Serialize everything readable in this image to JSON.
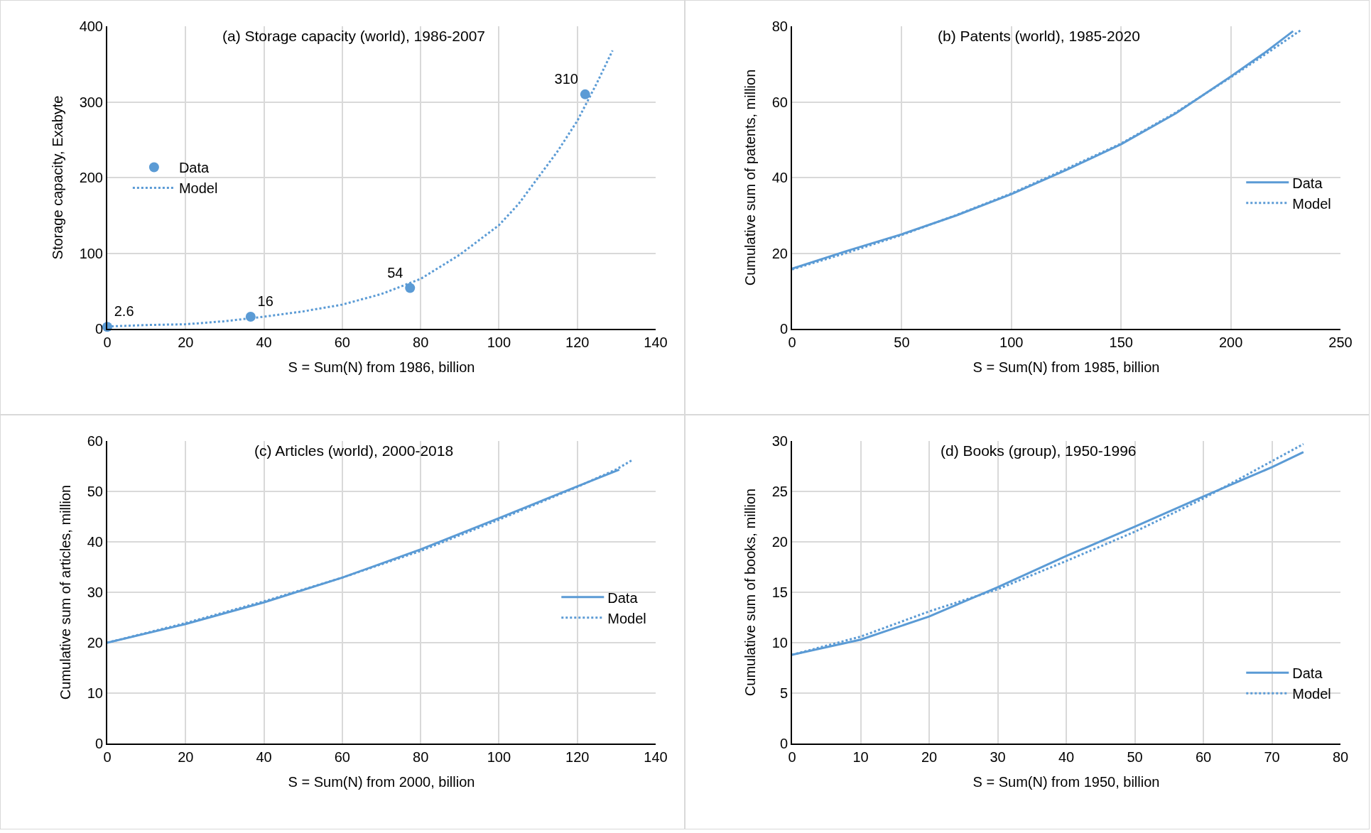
{
  "chart_data": [
    {
      "type": "scatter",
      "title": "(a) Storage capacity (world), 1986-2007",
      "xlabel": "S = Sum(N) from 1986, billion",
      "ylabel": "Storage capacity, Exabyte",
      "xlim": [
        0,
        140
      ],
      "xticks": [
        0,
        20,
        40,
        60,
        80,
        100,
        120,
        140
      ],
      "ylim": [
        0,
        400
      ],
      "yticks": [
        0,
        100,
        200,
        300,
        400
      ],
      "grid": true,
      "legend": "left",
      "series": [
        {
          "name": "Data",
          "marker": "circle",
          "color": "#5b9bd5",
          "x": [
            0,
            36.6,
            77.3,
            122
          ],
          "values": [
            2.6,
            16,
            54,
            310
          ],
          "value_labels": [
            "2.6",
            "16",
            "54",
            "310"
          ]
        },
        {
          "name": "Model",
          "type": "line",
          "marker": "none",
          "line_style": "dotted",
          "color": "#5b9bd5",
          "x": [
            0,
            10,
            20,
            30,
            40,
            50,
            60,
            70,
            80,
            90,
            100,
            105,
            110,
            115,
            120,
            125,
            129
          ],
          "values": [
            3,
            5,
            6,
            10,
            16,
            23,
            32,
            46,
            66,
            98,
            137,
            165,
            200,
            235,
            275,
            325,
            368
          ]
        }
      ]
    },
    {
      "type": "line",
      "title": "(b) Patents (world), 1985-2020",
      "xlabel": "S = Sum(N) from 1985, billion",
      "ylabel": "Cumulative sum of patents, million",
      "xlim": [
        0,
        250
      ],
      "xticks": [
        0,
        50,
        100,
        150,
        200,
        250
      ],
      "ylim": [
        0,
        80
      ],
      "yticks": [
        0,
        20,
        40,
        60,
        80
      ],
      "grid": true,
      "legend": "right",
      "series": [
        {
          "name": "Data",
          "line_style": "solid",
          "color": "#5b9bd5",
          "x": [
            0,
            25,
            50,
            75,
            100,
            125,
            150,
            175,
            200,
            215,
            228.4
          ],
          "values": [
            15.9,
            20.6,
            25,
            30,
            35.6,
            42,
            48.8,
            57,
            66.7,
            72.8,
            78.7
          ]
        },
        {
          "name": "Model",
          "line_style": "dotted",
          "color": "#5b9bd5",
          "x": [
            0,
            25,
            50,
            75,
            100,
            125,
            150,
            175,
            200,
            215,
            232
          ],
          "values": [
            15.7,
            20.1,
            24.8,
            30.1,
            35.8,
            42.3,
            49,
            57.2,
            66.5,
            72.3,
            79
          ]
        }
      ]
    },
    {
      "type": "line",
      "title": "(c) Articles (world), 2000-2018",
      "xlabel": "S = Sum(N) from 2000, billion",
      "ylabel": "Cumulative sum of articles, million",
      "xlim": [
        0,
        140
      ],
      "xticks": [
        0,
        20,
        40,
        60,
        80,
        100,
        120,
        140
      ],
      "ylim": [
        0,
        60
      ],
      "yticks": [
        0,
        10,
        20,
        30,
        40,
        50,
        60
      ],
      "grid": true,
      "legend": "right",
      "series": [
        {
          "name": "Data",
          "line_style": "solid",
          "color": "#5b9bd5",
          "x": [
            0,
            20,
            40,
            60,
            80,
            100,
            120,
            130.7
          ],
          "values": [
            20,
            23.7,
            28,
            32.9,
            38.5,
            44.7,
            51,
            54.3
          ]
        },
        {
          "name": "Model",
          "line_style": "dotted",
          "color": "#5b9bd5",
          "x": [
            0,
            20,
            40,
            60,
            80,
            100,
            120,
            130,
            134
          ],
          "values": [
            20,
            23.9,
            28.2,
            32.9,
            38.2,
            44.4,
            50.9,
            54.4,
            56.2
          ]
        }
      ]
    },
    {
      "type": "line",
      "title": "(d) Books (group), 1950-1996",
      "xlabel": "S = Sum(N) from 1950, billion",
      "ylabel": "Cumulative sum of books, million",
      "xlim": [
        0,
        80
      ],
      "xticks": [
        0,
        10,
        20,
        30,
        40,
        50,
        60,
        70,
        80
      ],
      "ylim": [
        0,
        30
      ],
      "yticks": [
        0,
        5,
        10,
        15,
        20,
        25,
        30
      ],
      "grid": true,
      "legend": "bottom right",
      "series": [
        {
          "name": "Data",
          "line_style": "solid",
          "color": "#5b9bd5",
          "x": [
            0,
            10,
            20,
            30,
            40,
            50,
            60,
            70,
            74.6
          ],
          "values": [
            8.8,
            10.3,
            12.6,
            15.5,
            18.6,
            21.5,
            24.5,
            27.4,
            28.9
          ]
        },
        {
          "name": "Model",
          "line_style": "dotted",
          "color": "#5b9bd5",
          "x": [
            0,
            10,
            20,
            30,
            40,
            50,
            60,
            70,
            74.6
          ],
          "values": [
            8.8,
            10.6,
            13.1,
            15.3,
            18.1,
            21,
            24.3,
            28,
            29.7
          ]
        }
      ]
    }
  ]
}
